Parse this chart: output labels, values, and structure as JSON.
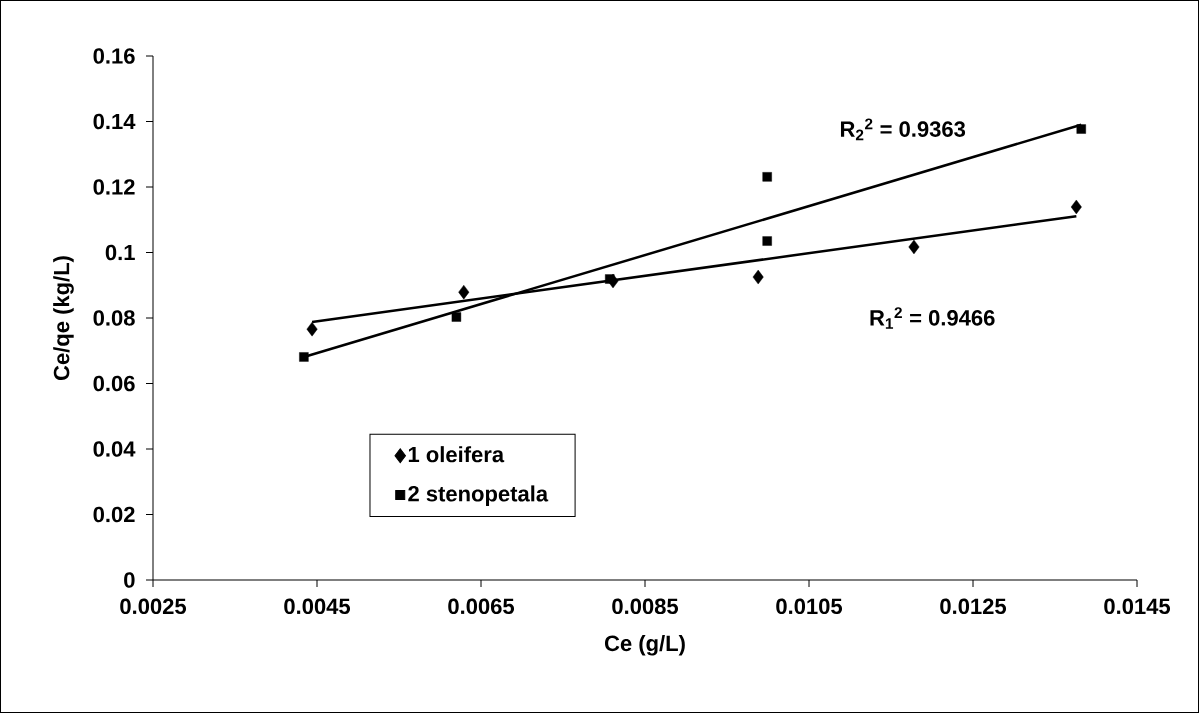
{
  "chart_data": {
    "type": "scatter",
    "xlabel": "Ce (g/L)",
    "ylabel": "Ce/qe (kg/L)",
    "xlim": [
      0.0025,
      0.0145
    ],
    "xticks": [
      0.0025,
      0.0045,
      0.0065,
      0.0085,
      0.0105,
      0.0125,
      0.0145
    ],
    "ylim": [
      0,
      0.16
    ],
    "yticks": [
      0,
      0.02,
      0.04,
      0.06,
      0.08,
      0.1,
      0.12,
      0.14,
      0.16
    ],
    "grid": false,
    "legend": "bottom left",
    "annotations": [
      "R$_{2}$$^{2}$ = 0.9363",
      "R$_{1}$$^{2}$ = 0.9466"
    ],
    "series": [
      {
        "name": "1 oleifera",
        "type": "scatter",
        "marker": "diamond",
        "color": "#000000",
        "x": [
          0.00444,
          0.00629,
          0.00811,
          0.00988,
          0.01178,
          0.01376
        ],
        "values": [
          0.0766,
          0.0879,
          0.0913,
          0.0925,
          0.1017,
          0.1139
        ]
      },
      {
        "name": "2 stenopetala",
        "type": "scatter",
        "marker": "square",
        "color": "#000000",
        "x": [
          0.00434,
          0.0062,
          0.00807,
          0.00999,
          0.00999,
          0.01382
        ],
        "values": [
          0.0681,
          0.0803,
          0.0919,
          0.1035,
          0.1231,
          0.1377
        ]
      },
      {
        "type": "line",
        "marker": "none",
        "color": "#000000",
        "x": [
          0.00444,
          0.01376
        ],
        "values": [
          0.0788,
          0.1111
        ]
      },
      {
        "type": "line",
        "marker": "none",
        "color": "#000000",
        "x": [
          0.00434,
          0.01382
        ],
        "values": [
          0.0681,
          0.139
        ]
      }
    ]
  }
}
